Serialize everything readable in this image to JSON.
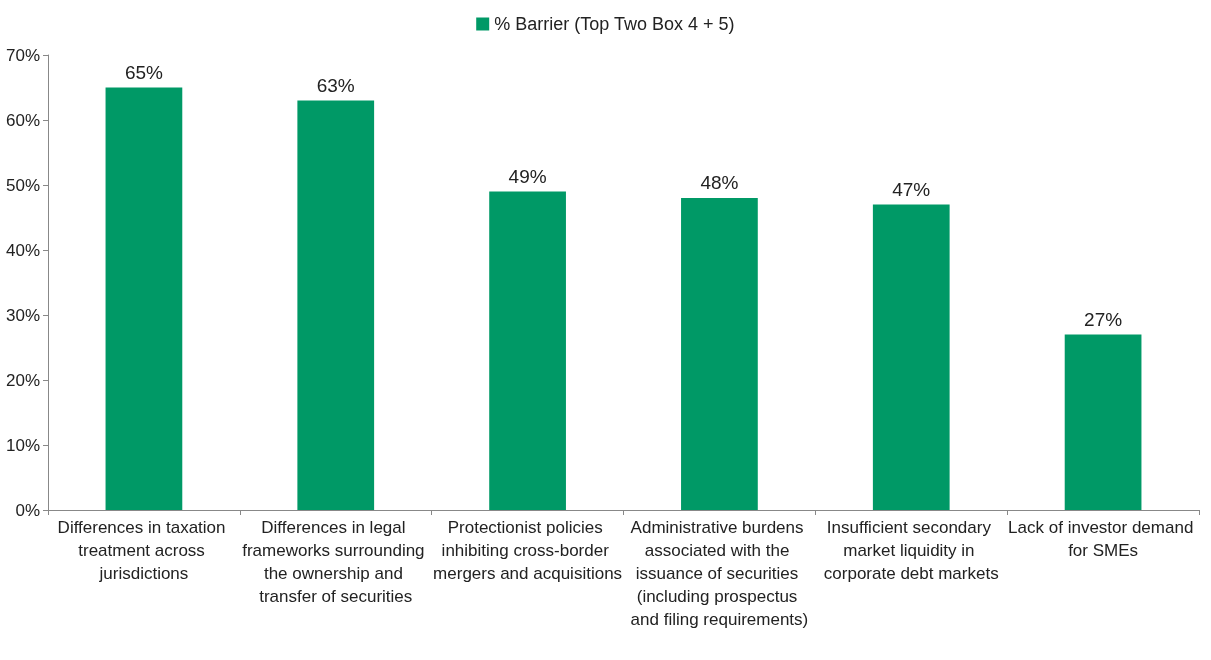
{
  "chart_data": {
    "type": "bar",
    "categories": [
      "Differences in taxation treatment across jurisdictions",
      "Differences in legal frameworks surrounding the ownership and transfer of securities",
      "Protectionist policies inhibiting cross-border mergers and acquisitions",
      "Administrative burdens associated with the issuance of securities (including prospectus and filing requirements)",
      "Insufficient secondary market liquidity in corporate debt markets",
      "Lack of investor demand for SMEs"
    ],
    "series": [
      {
        "name": "% Barrier (Top Two Box 4 + 5)",
        "color": "#009966",
        "values": [
          65,
          63,
          49,
          48,
          47,
          27
        ],
        "value_labels": [
          "65%",
          "63%",
          "49%",
          "48%",
          "47%",
          "27%"
        ]
      }
    ],
    "ylim": [
      0,
      70
    ],
    "yticks": [
      {
        "value": 0,
        "label": "0%"
      },
      {
        "value": 10,
        "label": "10%"
      },
      {
        "value": 20,
        "label": "20%"
      },
      {
        "value": 30,
        "label": "30%"
      },
      {
        "value": 40,
        "label": "40%"
      },
      {
        "value": 50,
        "label": "50%"
      },
      {
        "value": 60,
        "label": "60%"
      },
      {
        "value": 70,
        "label": "70%"
      }
    ],
    "grid": false,
    "legend": "top"
  }
}
